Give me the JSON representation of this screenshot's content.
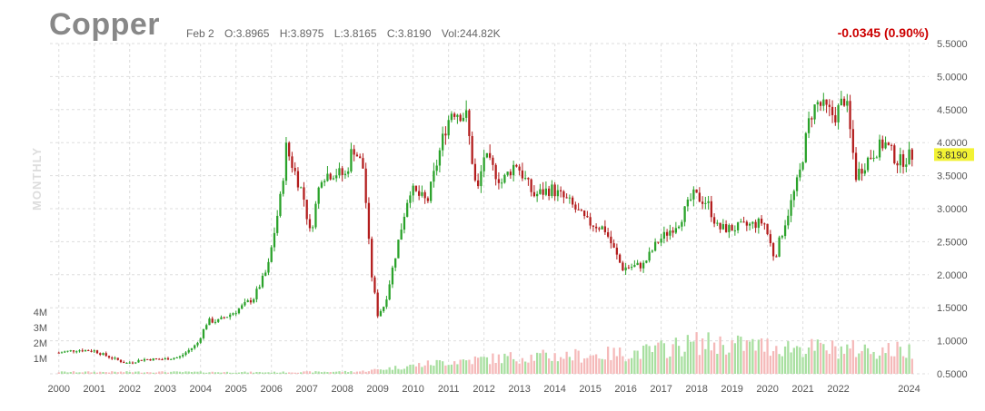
{
  "header": {
    "title": "Copper",
    "date": "Feb 2",
    "open": "O:3.8965",
    "high": "H:3.8975",
    "low": "L:3.8165",
    "close": "C:3.8190",
    "volume": "Vol:244.82K",
    "change": "-0.0345 (0.90%)",
    "period": "MONTHLY"
  },
  "colors": {
    "up": "#2aa22a",
    "down": "#b31d1d",
    "volume_up": "#a8dfa0",
    "volume_down": "#f5b9b9",
    "grid": "#dddddd",
    "last_price_bg": "#f2f234",
    "change": "#cc0000"
  },
  "chart_data": {
    "type": "candlestick",
    "title": "Copper",
    "interval": "monthly",
    "grid": true,
    "last_price": "3.8190",
    "price_axis": {
      "position": "right",
      "range": [
        0.5,
        5.5
      ],
      "ticks": [
        "5.5000",
        "5.0000",
        "4.5000",
        "4.0000",
        "3.5000",
        "3.0000",
        "2.5000",
        "2.0000",
        "1.5000",
        "1.0000",
        "0.5000"
      ]
    },
    "volume_axis": {
      "position": "left",
      "ticks": [
        "4M",
        "3M",
        "2M",
        "1M"
      ]
    },
    "x_axis": {
      "ticks": [
        "2000",
        "2001",
        "2002",
        "2003",
        "2004",
        "2005",
        "2006",
        "2007",
        "2008",
        "2009",
        "2010",
        "2011",
        "2012",
        "2013",
        "2014",
        "2015",
        "2016",
        "2017",
        "2018",
        "2019",
        "2020",
        "2021",
        "2022",
        "2024"
      ]
    },
    "price_path": [
      [
        2000.0,
        0.82
      ],
      [
        2000.5,
        0.86
      ],
      [
        2001.0,
        0.85
      ],
      [
        2001.3,
        0.78
      ],
      [
        2001.9,
        0.66
      ],
      [
        2002.4,
        0.72
      ],
      [
        2002.9,
        0.72
      ],
      [
        2003.4,
        0.75
      ],
      [
        2003.9,
        0.95
      ],
      [
        2004.2,
        1.3
      ],
      [
        2004.5,
        1.3
      ],
      [
        2005.0,
        1.45
      ],
      [
        2005.5,
        1.65
      ],
      [
        2005.9,
        2.1
      ],
      [
        2006.3,
        3.3
      ],
      [
        2006.4,
        3.95
      ],
      [
        2006.7,
        3.5
      ],
      [
        2006.9,
        3.2
      ],
      [
        2007.1,
        2.6
      ],
      [
        2007.4,
        3.5
      ],
      [
        2007.8,
        3.55
      ],
      [
        2008.1,
        3.5
      ],
      [
        2008.3,
        3.95
      ],
      [
        2008.6,
        3.6
      ],
      [
        2008.8,
        2.1
      ],
      [
        2009.0,
        1.4
      ],
      [
        2009.2,
        1.55
      ],
      [
        2009.5,
        2.3
      ],
      [
        2009.9,
        3.3
      ],
      [
        2010.4,
        3.1
      ],
      [
        2010.9,
        4.2
      ],
      [
        2011.1,
        4.5
      ],
      [
        2011.5,
        4.4
      ],
      [
        2011.8,
        3.2
      ],
      [
        2012.0,
        3.8
      ],
      [
        2012.5,
        3.4
      ],
      [
        2012.9,
        3.7
      ],
      [
        2013.4,
        3.2
      ],
      [
        2013.9,
        3.3
      ],
      [
        2014.4,
        3.1
      ],
      [
        2014.9,
        2.8
      ],
      [
        2015.4,
        2.7
      ],
      [
        2015.9,
        2.1
      ],
      [
        2016.5,
        2.15
      ],
      [
        2016.9,
        2.5
      ],
      [
        2017.5,
        2.8
      ],
      [
        2017.9,
        3.2
      ],
      [
        2018.3,
        3.1
      ],
      [
        2018.6,
        2.7
      ],
      [
        2019.0,
        2.7
      ],
      [
        2019.5,
        2.75
      ],
      [
        2019.9,
        2.8
      ],
      [
        2020.2,
        2.25
      ],
      [
        2020.5,
        2.8
      ],
      [
        2020.9,
        3.5
      ],
      [
        2021.2,
        4.4
      ],
      [
        2021.4,
        4.6
      ],
      [
        2021.9,
        4.4
      ],
      [
        2022.2,
        4.7
      ],
      [
        2022.5,
        3.5
      ],
      [
        2022.9,
        3.8
      ],
      [
        2023.3,
        4.0
      ],
      [
        2023.7,
        3.7
      ],
      [
        2024.1,
        3.82
      ]
    ],
    "volume_path": [
      [
        2000.0,
        0.12
      ],
      [
        2003.0,
        0.12
      ],
      [
        2006.0,
        0.1
      ],
      [
        2008.5,
        0.15
      ],
      [
        2009.5,
        0.4
      ],
      [
        2011.0,
        0.8
      ],
      [
        2013.0,
        1.1
      ],
      [
        2015.0,
        1.2
      ],
      [
        2016.5,
        1.4
      ],
      [
        2018.0,
        2.0
      ],
      [
        2020.0,
        1.8
      ],
      [
        2021.0,
        1.7
      ],
      [
        2022.0,
        1.6
      ],
      [
        2024.1,
        1.5
      ]
    ]
  }
}
